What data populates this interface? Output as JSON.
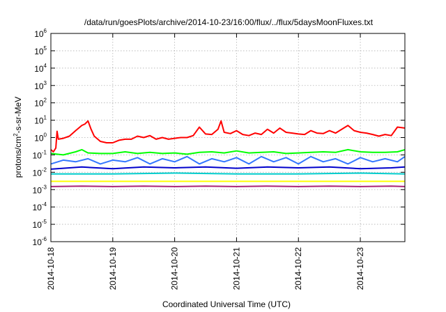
{
  "chart_data": {
    "type": "line",
    "title": "/data/run/goesPlots/archive/2014-10-23/16:00/flux/../flux/5daysMoonFluxes.txt",
    "xlabel": "Coordinated Universal Time (UTC)",
    "ylabel": {
      "base": "protons/cm",
      "sup": "2",
      "rest": "-s-sr-MeV"
    },
    "y_scale": "log",
    "ylim_exponent": [
      -6,
      6
    ],
    "y_tick_exponents": [
      -6,
      -5,
      -4,
      -3,
      -2,
      -1,
      0,
      1,
      2,
      3,
      4,
      5,
      6
    ],
    "y_tick_base": "10",
    "xlim_days": [
      0,
      5.72
    ],
    "x_ticks": [
      {
        "day": 0,
        "label": "2014-10-18"
      },
      {
        "day": 1,
        "label": "2014-10-19"
      },
      {
        "day": 2,
        "label": "2014-10-20"
      },
      {
        "day": 3,
        "label": "2014-10-21"
      },
      {
        "day": 4,
        "label": "2014-10-22"
      },
      {
        "day": 5,
        "label": "2014-10-23"
      }
    ],
    "grid": true,
    "series": [
      {
        "color": "#ff0000",
        "x": [
          0,
          0.04,
          0.08,
          0.1,
          0.12,
          0.2,
          0.3,
          0.4,
          0.5,
          0.55,
          0.6,
          0.65,
          0.7,
          0.8,
          0.9,
          1.0,
          1.1,
          1.2,
          1.3,
          1.4,
          1.5,
          1.6,
          1.7,
          1.8,
          1.9,
          2.0,
          2.1,
          2.2,
          2.3,
          2.4,
          2.5,
          2.6,
          2.7,
          2.75,
          2.8,
          2.9,
          3.0,
          3.1,
          3.2,
          3.3,
          3.4,
          3.5,
          3.6,
          3.7,
          3.8,
          3.9,
          4.0,
          4.1,
          4.2,
          4.3,
          4.4,
          4.5,
          4.6,
          4.7,
          4.8,
          4.9,
          5.0,
          5.1,
          5.2,
          5.3,
          5.4,
          5.5,
          5.6,
          5.72
        ],
        "y": [
          0.2,
          0.15,
          0.25,
          2.3,
          0.8,
          0.9,
          1.2,
          2.5,
          5.0,
          6.0,
          9.0,
          3.0,
          1.2,
          0.6,
          0.5,
          0.5,
          0.7,
          0.8,
          0.8,
          1.2,
          1.0,
          1.3,
          0.8,
          1.0,
          0.8,
          0.9,
          1.0,
          1.0,
          1.3,
          4.0,
          1.6,
          1.5,
          3.0,
          9.0,
          2.0,
          1.7,
          2.5,
          1.5,
          1.3,
          1.8,
          1.5,
          3.0,
          1.8,
          3.5,
          2.0,
          1.8,
          1.6,
          1.5,
          2.5,
          1.8,
          1.7,
          2.5,
          1.8,
          3.0,
          5.0,
          2.5,
          2.0,
          1.8,
          1.5,
          1.2,
          1.5,
          1.3,
          4.0,
          3.5
        ]
      },
      {
        "color": "#00ff00",
        "x": [
          0,
          0.2,
          0.4,
          0.5,
          0.6,
          0.8,
          1.0,
          1.2,
          1.4,
          1.6,
          1.8,
          2.0,
          2.2,
          2.4,
          2.6,
          2.8,
          3.0,
          3.2,
          3.4,
          3.6,
          3.8,
          4.0,
          4.2,
          4.4,
          4.6,
          4.8,
          5.0,
          5.2,
          5.4,
          5.6,
          5.72
        ],
        "y": [
          0.12,
          0.1,
          0.15,
          0.2,
          0.13,
          0.12,
          0.12,
          0.15,
          0.12,
          0.14,
          0.12,
          0.13,
          0.11,
          0.14,
          0.15,
          0.13,
          0.17,
          0.13,
          0.14,
          0.15,
          0.12,
          0.13,
          0.14,
          0.15,
          0.14,
          0.2,
          0.15,
          0.14,
          0.14,
          0.15,
          0.2
        ]
      },
      {
        "color": "#3377ff",
        "x": [
          0,
          0.2,
          0.4,
          0.6,
          0.8,
          1.0,
          1.2,
          1.4,
          1.6,
          1.8,
          2.0,
          2.2,
          2.4,
          2.6,
          2.8,
          3.0,
          3.2,
          3.4,
          3.6,
          3.8,
          4.0,
          4.2,
          4.4,
          4.6,
          4.8,
          5.0,
          5.2,
          5.4,
          5.6,
          5.72
        ],
        "y": [
          0.03,
          0.05,
          0.04,
          0.06,
          0.03,
          0.05,
          0.04,
          0.07,
          0.03,
          0.06,
          0.04,
          0.08,
          0.03,
          0.06,
          0.04,
          0.07,
          0.03,
          0.08,
          0.04,
          0.07,
          0.03,
          0.08,
          0.04,
          0.06,
          0.03,
          0.07,
          0.04,
          0.06,
          0.04,
          0.08
        ]
      },
      {
        "color": "#0000cc",
        "x": [
          0,
          0.5,
          1.0,
          1.5,
          2.0,
          2.5,
          3.0,
          3.5,
          4.0,
          4.5,
          5.0,
          5.5,
          5.72
        ],
        "y": [
          0.015,
          0.02,
          0.016,
          0.02,
          0.018,
          0.02,
          0.017,
          0.02,
          0.018,
          0.02,
          0.016,
          0.018,
          0.02
        ]
      },
      {
        "color": "#00cccc",
        "x": [
          0,
          1.0,
          2.0,
          3.0,
          4.0,
          5.0,
          5.72
        ],
        "y": [
          0.008,
          0.008,
          0.009,
          0.008,
          0.008,
          0.009,
          0.008
        ]
      },
      {
        "color": "#ffff00",
        "x": [
          0,
          1.0,
          2.0,
          3.0,
          4.0,
          5.0,
          5.72
        ],
        "y": [
          0.003,
          0.003,
          0.003,
          0.003,
          0.003,
          0.003,
          0.003
        ]
      },
      {
        "color": "#aa2277",
        "x": [
          0,
          0.5,
          1.0,
          1.5,
          2.0,
          2.5,
          3.0,
          3.5,
          4.0,
          4.5,
          5.0,
          5.5,
          5.72
        ],
        "y": [
          0.0015,
          0.0016,
          0.0015,
          0.0016,
          0.0015,
          0.0016,
          0.0015,
          0.0016,
          0.0015,
          0.0016,
          0.0015,
          0.0016,
          0.0015
        ]
      }
    ]
  }
}
